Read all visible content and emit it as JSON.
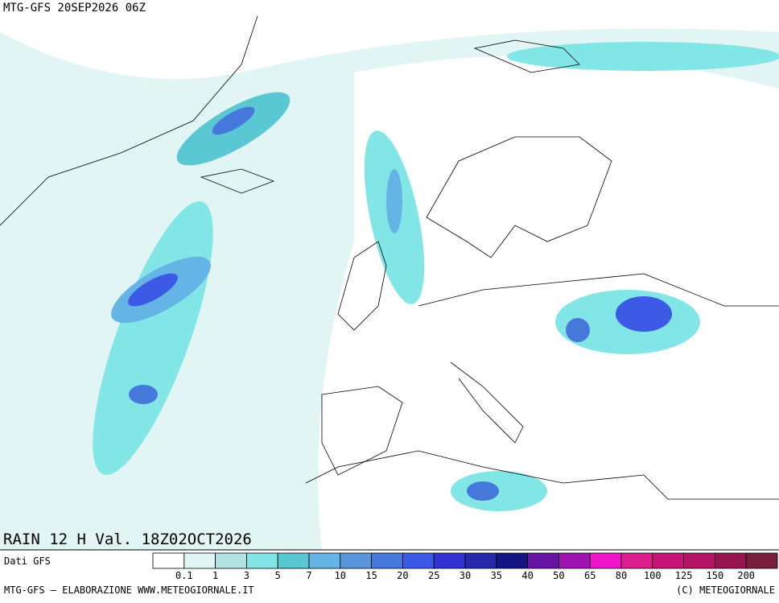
{
  "header": {
    "run": "MTG-GFS 20SEP2026 06Z"
  },
  "map": {
    "field_label": "RAIN 12 H Val. 18Z02OCT2026"
  },
  "legend": {
    "source": "Dati GFS",
    "colors": [
      "#ffffff",
      "#e1f5f5",
      "#b4e1e1",
      "#82e6e6",
      "#5ac8d2",
      "#64b4e6",
      "#5a96dc",
      "#4678dc",
      "#3c5ae6",
      "#3232d2",
      "#2828aa",
      "#141482",
      "#6414a0",
      "#a014b4",
      "#f014c8",
      "#dc1e8c",
      "#c81478",
      "#b41464",
      "#961450",
      "#781e3c"
    ],
    "labels": [
      "0.1",
      "1",
      "3",
      "5",
      "7",
      "10",
      "15",
      "20",
      "25",
      "30",
      "35",
      "40",
      "50",
      "65",
      "80",
      "100",
      "125",
      "150",
      "200"
    ]
  },
  "footer": {
    "left": "MTG-GFS — ELABORAZIONE WWW.METEOGIORNALE.IT",
    "right": "(C) METEOGIORNALE"
  }
}
